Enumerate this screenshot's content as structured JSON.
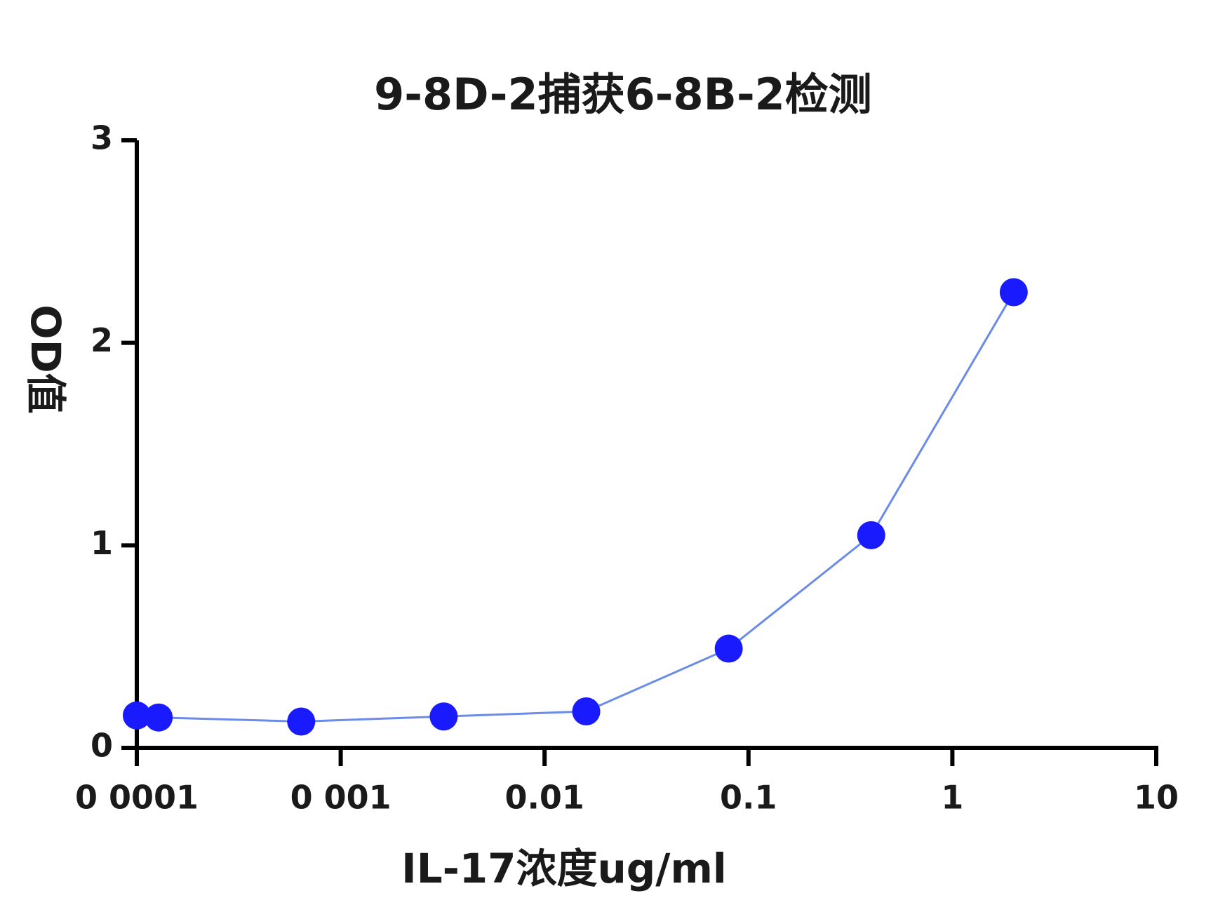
{
  "chart_data": {
    "type": "line",
    "title": "9-8D-2捕获6-8B-2检测",
    "x_label": "IL-17浓度ug/ml",
    "y_label": "OD值",
    "x": [
      0.0001,
      0.000128,
      0.00064,
      0.0032,
      0.016,
      0.08,
      0.4,
      2
    ],
    "series": [
      {
        "name": "OD",
        "color": "#1a1aff",
        "line_color": "#6a8be8",
        "values": [
          0.16,
          0.15,
          0.13,
          0.155,
          0.18,
          0.49,
          1.05,
          2.25
        ]
      }
    ],
    "x_log": true,
    "xlim": [
      0.0001,
      10
    ],
    "xticks": [
      {
        "value": 0.0001,
        "label": "0 0001"
      },
      {
        "value": 0.001,
        "label": "0 001"
      },
      0.01,
      0.1,
      1,
      10
    ],
    "ylim": [
      0,
      3
    ],
    "yticks": [
      0,
      1,
      2,
      3
    ],
    "grid": false,
    "legend": false
  }
}
